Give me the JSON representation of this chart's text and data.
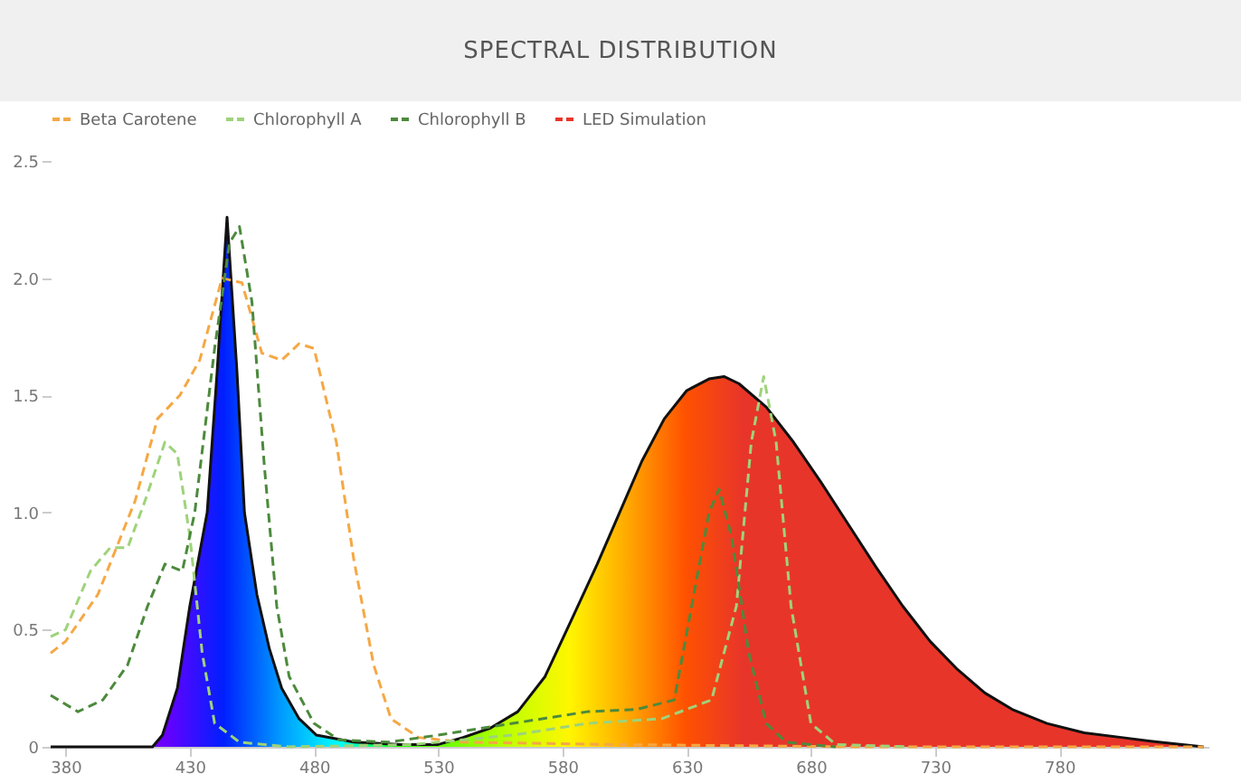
{
  "chart_data": {
    "type": "line",
    "title": "SPECTRAL DISTRIBUTION",
    "legend": "top",
    "grid": false,
    "marker": "none",
    "xlim": [
      374,
      840
    ],
    "xticks": [
      380,
      430,
      480,
      530,
      580,
      630,
      680,
      730,
      780
    ],
    "ylim": [
      0,
      2.5
    ],
    "yticks": [
      0,
      0.5,
      {
        "value": 1,
        "label": "1.0"
      },
      1.5,
      {
        "value": 2,
        "label": "2.0"
      },
      2.5
    ],
    "series": [
      {
        "name": "Beta Carotene",
        "color": "#f5a844",
        "line_style": "dashed",
        "x": [
          374,
          380,
          393,
          408,
          417,
          426,
          434,
          443,
          451,
          459,
          467,
          474,
          480,
          489,
          496,
          504,
          511,
          522,
          540,
          600,
          700,
          838
        ],
        "values": [
          0.4,
          0.45,
          0.65,
          1.05,
          1.4,
          1.5,
          1.65,
          2.0,
          1.98,
          1.68,
          1.65,
          1.72,
          1.7,
          1.3,
          0.8,
          0.35,
          0.12,
          0.04,
          0.02,
          0.01,
          0,
          0
        ]
      },
      {
        "name": "Chlorophyll A",
        "color": "#9ed37a",
        "line_style": "dashed",
        "x": [
          374,
          380,
          390,
          398,
          405,
          412,
          420,
          425,
          430,
          435,
          440,
          450,
          470,
          520,
          560,
          590,
          620,
          640,
          650,
          656,
          661,
          666,
          672,
          680,
          690,
          720
        ],
        "values": [
          0.47,
          0.5,
          0.75,
          0.85,
          0.85,
          1.05,
          1.3,
          1.25,
          0.9,
          0.4,
          0.1,
          0.02,
          0,
          0.01,
          0.05,
          0.1,
          0.12,
          0.2,
          0.6,
          1.3,
          1.58,
          1.3,
          0.6,
          0.1,
          0.01,
          0
        ]
      },
      {
        "name": "Chlorophyll B",
        "color": "#4c8a3c",
        "line_style": "dashed",
        "x": [
          374,
          385,
          395,
          405,
          413,
          420,
          427,
          432,
          440,
          446,
          450,
          455,
          460,
          465,
          470,
          480,
          490,
          510,
          530,
          560,
          590,
          610,
          625,
          632,
          639,
          643,
          648,
          655,
          662,
          670,
          690
        ],
        "values": [
          0.22,
          0.15,
          0.2,
          0.35,
          0.6,
          0.78,
          0.75,
          1.0,
          1.7,
          2.15,
          2.22,
          1.9,
          1.2,
          0.6,
          0.3,
          0.1,
          0.03,
          0.02,
          0.05,
          0.1,
          0.15,
          0.16,
          0.2,
          0.6,
          1.0,
          1.1,
          0.9,
          0.4,
          0.1,
          0.02,
          0
        ]
      },
      {
        "name": "LED Simulation",
        "type": "area",
        "color": "#e8352a",
        "line_style": "solid",
        "x": [
          374,
          415,
          419,
          425,
          430,
          437,
          441,
          445,
          449,
          452,
          457,
          462,
          467,
          474,
          481,
          496,
          515,
          530,
          540,
          551,
          562,
          573,
          584,
          594,
          603,
          612,
          621,
          630,
          639,
          645,
          651,
          662,
          673,
          684,
          695,
          706,
          717,
          728,
          739,
          750,
          761,
          775,
          790,
          805,
          820,
          838
        ],
        "values": [
          0,
          0,
          0.05,
          0.25,
          0.6,
          1.0,
          1.6,
          2.26,
          1.6,
          1.0,
          0.65,
          0.42,
          0.25,
          0.12,
          0.05,
          0.02,
          0.01,
          0.01,
          0.04,
          0.08,
          0.15,
          0.3,
          0.55,
          0.78,
          1.0,
          1.22,
          1.4,
          1.52,
          1.57,
          1.58,
          1.55,
          1.45,
          1.3,
          1.13,
          0.95,
          0.77,
          0.6,
          0.45,
          0.33,
          0.23,
          0.16,
          0.1,
          0.06,
          0.04,
          0.02,
          0
        ]
      }
    ]
  }
}
